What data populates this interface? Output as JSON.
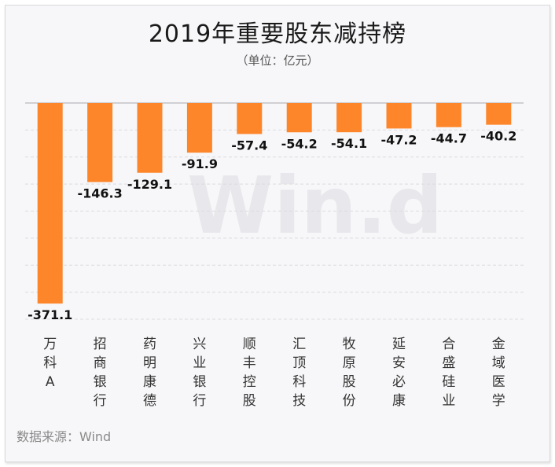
{
  "title": "2019年重要股东减持榜",
  "subtitle": "（单位：亿元）",
  "source": "数据来源：Wind",
  "watermark": "Win.d",
  "colors": {
    "bar": "#fd862b",
    "grid": "#dcdce0",
    "axis": "#c4c4c8"
  },
  "chart_data": {
    "type": "bar",
    "title": "2019年重要股东减持榜",
    "subtitle": "（单位：亿元）",
    "categories": [
      "万科A",
      "招商银行",
      "药明康德",
      "兴业银行",
      "顺丰控股",
      "汇顶科技",
      "牧原股份",
      "延安必康",
      "合盛硅业",
      "金域医学"
    ],
    "values": [
      -371.1,
      -146.3,
      -129.1,
      -91.9,
      -57.4,
      -54.2,
      -54.1,
      -47.2,
      -44.7,
      -40.2
    ],
    "ylim": [
      -400,
      0
    ],
    "grid": true
  }
}
